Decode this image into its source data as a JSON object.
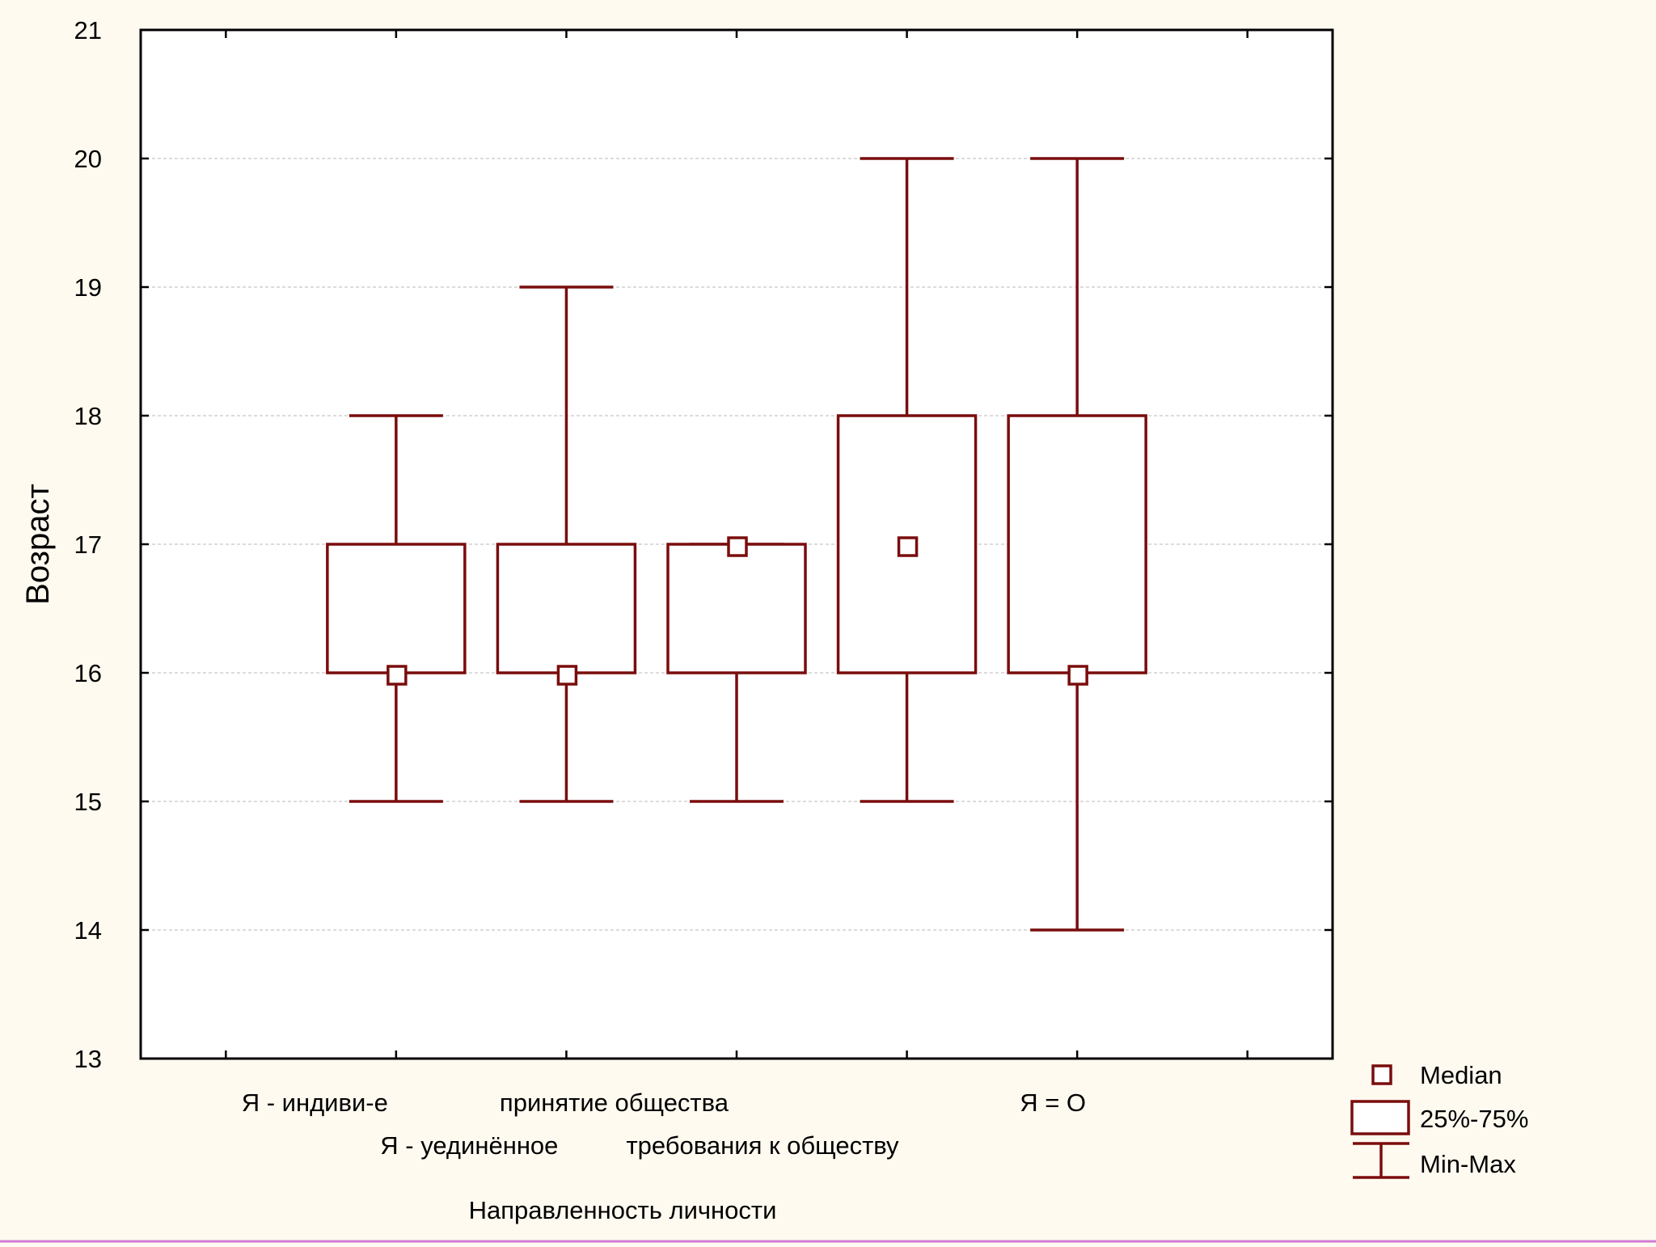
{
  "chart_data": {
    "type": "boxplot",
    "title": "",
    "xlabel": "Направленность личности",
    "ylabel": "Возраст",
    "ylim": [
      13,
      21
    ],
    "yticks": [
      "13",
      "14",
      "15",
      "16",
      "17",
      "18",
      "19",
      "20",
      "21"
    ],
    "grid": "horizontal dashed",
    "legend_position": "bottom-right",
    "categories": [
      "Я - индиви-е",
      "Я - уединённое",
      "принятие общества",
      "требования к обществу",
      "Я = О"
    ],
    "series": [
      {
        "category": "Я - индиви-е",
        "min": 15,
        "q1": 16,
        "median": 16,
        "q3": 17,
        "max": 18
      },
      {
        "category": "Я - уединённое",
        "min": 15,
        "q1": 16,
        "median": 16,
        "q3": 17,
        "max": 19
      },
      {
        "category": "принятие общества",
        "min": 15,
        "q1": 16,
        "median": 17,
        "q3": 17,
        "max": 17
      },
      {
        "category": "требования к обществу",
        "min": 15,
        "q1": 16,
        "median": 17,
        "q3": 18,
        "max": 20
      },
      {
        "category": "Я = О",
        "min": 14,
        "q1": 16,
        "median": 16,
        "q3": 18,
        "max": 20
      }
    ],
    "legend": {
      "median": "Median",
      "box": "25%-75%",
      "whisker": "Min-Max"
    },
    "colors": {
      "marks": "#7a0d0d",
      "background": "#fffaf0",
      "plot_background": "#ffffff",
      "grid": "#c8c8c8"
    }
  }
}
